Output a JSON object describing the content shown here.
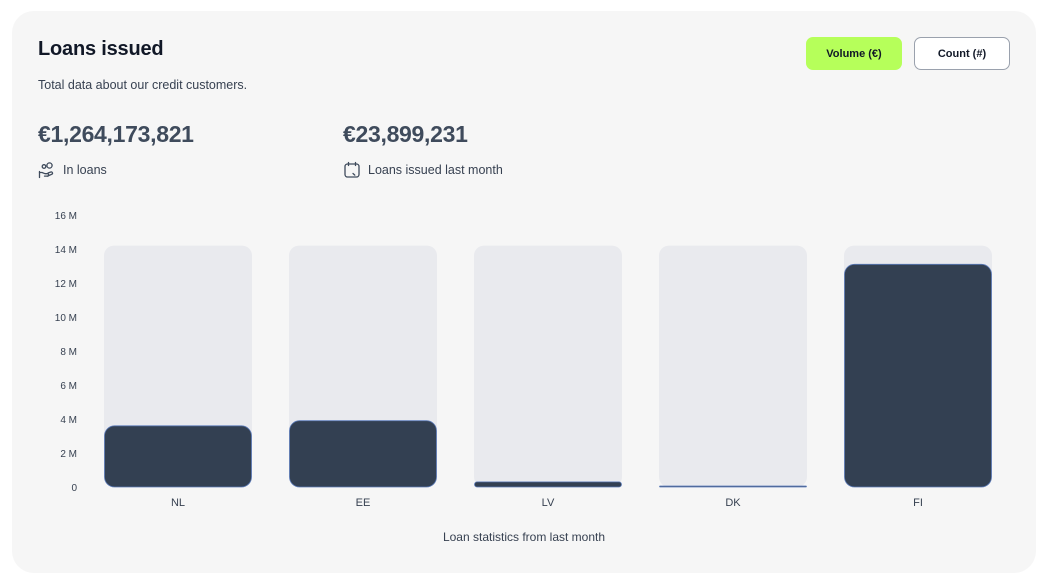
{
  "card": {
    "title": "Loans issued",
    "subtitle": "Total data about our credit customers."
  },
  "toggle": {
    "volume_label": "Volume (€)",
    "count_label": "Count (#)",
    "selected": "volume"
  },
  "stats": [
    {
      "value": "€1,264,173,821",
      "label": "In loans",
      "icon": "hand-coins-icon"
    },
    {
      "value": "€23,899,231",
      "label": "Loans issued last month",
      "icon": "calendar-icon"
    }
  ],
  "colors": {
    "accent": "#b6ff5a",
    "bar": "#334052",
    "track": "#e9eaee",
    "card_bg": "#f6f6f6"
  },
  "chart_data": {
    "type": "bar",
    "categories": [
      "NL",
      "EE",
      "LV",
      "DK",
      "FI"
    ],
    "values": [
      3.6,
      3.9,
      0.3,
      0.05,
      13.1
    ],
    "track_max": 14.2,
    "ylim": [
      0,
      16
    ],
    "yticks": [
      0,
      2,
      4,
      6,
      8,
      10,
      12,
      14,
      16
    ],
    "ytick_labels": [
      "0",
      "2 M",
      "4 M",
      "6 M",
      "8 M",
      "10 M",
      "12 M",
      "14 M",
      "16 M"
    ],
    "xlabel": "Loan statistics from last month",
    "ylabel": "",
    "title": "",
    "grid": false,
    "legend": false
  }
}
